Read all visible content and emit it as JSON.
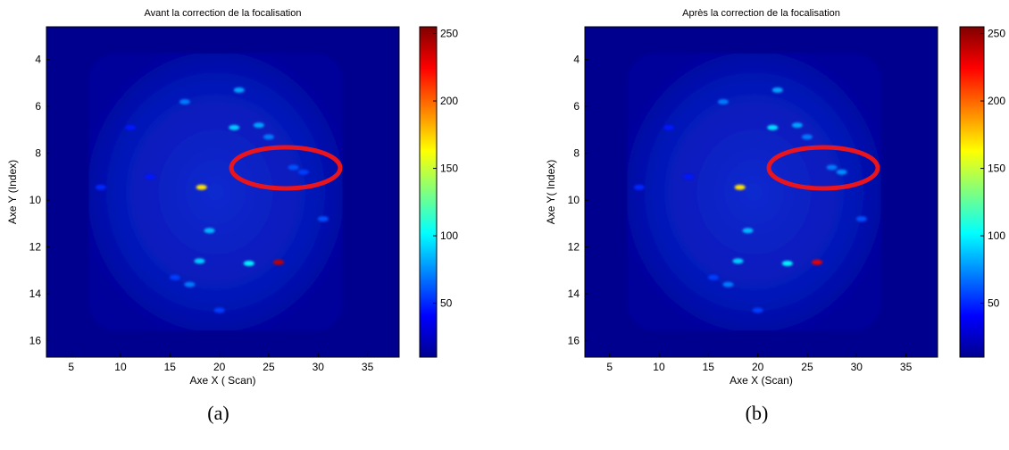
{
  "chart_data": [
    {
      "type": "heatmap",
      "title": "Avant la correction de la focalisation",
      "x_label": "Axe X ( Scan)",
      "y_label": "Axe Y (Index)",
      "caption": "(a)",
      "xlim": [
        2.5,
        38.2
      ],
      "xticks": [
        5,
        10,
        15,
        20,
        25,
        30,
        35
      ],
      "ylim": [
        2.6,
        16.7
      ],
      "yticks": [
        4,
        6,
        8,
        10,
        12,
        14,
        16
      ],
      "y_reversed": true,
      "colormap": "jet",
      "clim": [
        10,
        255
      ],
      "colorbar_ticks": [
        50,
        100,
        150,
        200,
        250
      ],
      "x": [
        18.2,
        26,
        22,
        21.5,
        24,
        19,
        18,
        23,
        17,
        16.5,
        25,
        30.5,
        8,
        20,
        28.5,
        13,
        15.5,
        27.5,
        11
      ],
      "y": [
        9.45,
        12.65,
        5.3,
        6.9,
        6.8,
        11.3,
        12.6,
        12.7,
        13.6,
        5.8,
        7.3,
        10.8,
        9.45,
        14.7,
        8.8,
        9,
        13.3,
        8.6,
        6.9
      ],
      "values": [
        170,
        240,
        80,
        90,
        80,
        85,
        90,
        100,
        70,
        70,
        70,
        60,
        50,
        55,
        55,
        45,
        55,
        60,
        45
      ]
    },
    {
      "type": "heatmap",
      "title": "Après la correction de la focalisation",
      "x_label": "Axe X (Scan)",
      "y_label": "Axe Y( Index)",
      "caption": "(b)",
      "xlim": [
        2.5,
        38.2
      ],
      "xticks": [
        5,
        10,
        15,
        20,
        25,
        30,
        35
      ],
      "ylim": [
        2.6,
        16.7
      ],
      "yticks": [
        4,
        6,
        8,
        10,
        12,
        14,
        16
      ],
      "y_reversed": true,
      "colormap": "jet",
      "clim": [
        10,
        255
      ],
      "colorbar_ticks": [
        50,
        100,
        150,
        200,
        250
      ],
      "x": [
        18.2,
        26,
        22,
        21.5,
        24,
        19,
        18,
        23,
        17,
        16.5,
        25,
        30.5,
        8,
        20,
        28.5,
        13,
        15.5,
        27.5,
        11
      ],
      "y": [
        9.45,
        12.65,
        5.3,
        6.9,
        6.8,
        11.3,
        12.6,
        12.7,
        13.6,
        5.8,
        7.3,
        10.8,
        9.45,
        14.7,
        8.8,
        9,
        13.3,
        8.6,
        6.9
      ],
      "values": [
        170,
        230,
        80,
        95,
        80,
        85,
        90,
        100,
        70,
        70,
        70,
        60,
        50,
        55,
        75,
        45,
        55,
        70,
        45
      ]
    }
  ]
}
